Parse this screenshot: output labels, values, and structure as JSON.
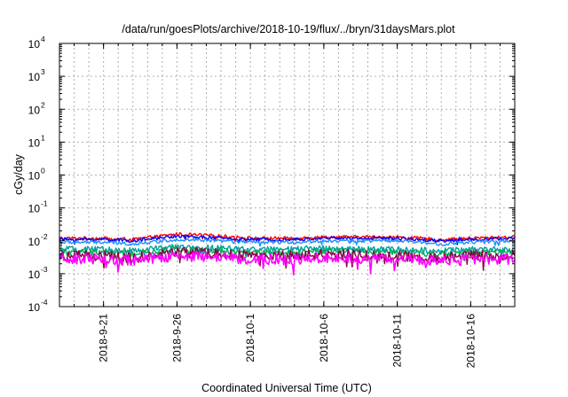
{
  "chart_data": {
    "type": "line",
    "title": "/data/run/goesPlots/archive/2018-10-19/flux/../bryn/31daysMars.plot",
    "xlabel": "Coordinated Universal Time (UTC)",
    "ylabel": "cGy/day",
    "y_scale": "log",
    "ylim_exponent": [
      -4,
      4
    ],
    "y_tick_exponents": [
      -4,
      -3,
      -2,
      -1,
      0,
      1,
      2,
      3,
      4
    ],
    "y_tick_base": "10",
    "xlim": [
      "2018-09-18",
      "2018-10-19"
    ],
    "x_ticks": [
      {
        "date": "2018-09-21",
        "label": "2018-9-21"
      },
      {
        "date": "2018-09-26",
        "label": "2018-9-26"
      },
      {
        "date": "2018-10-01",
        "label": "2018-10-1"
      },
      {
        "date": "2018-10-06",
        "label": "2018-10-6"
      },
      {
        "date": "2018-10-11",
        "label": "2018-10-11"
      },
      {
        "date": "2018-10-16",
        "label": "2018-10-16"
      }
    ],
    "grid": true,
    "x": [
      "2018-09-18",
      "2018-09-21",
      "2018-09-23",
      "2018-09-26",
      "2018-09-29",
      "2018-10-01",
      "2018-10-04",
      "2018-10-06",
      "2018-10-09",
      "2018-10-11",
      "2018-10-14",
      "2018-10-16",
      "2018-10-19"
    ],
    "series": [
      {
        "color": "#ff0000",
        "values": [
          0.012,
          0.012,
          0.011,
          0.016,
          0.014,
          0.012,
          0.012,
          0.013,
          0.013,
          0.013,
          0.011,
          0.012,
          0.013
        ]
      },
      {
        "color": "#0000ff",
        "values": [
          0.011,
          0.011,
          0.01,
          0.014,
          0.012,
          0.011,
          0.011,
          0.012,
          0.012,
          0.012,
          0.01,
          0.011,
          0.012
        ]
      },
      {
        "color": "#1e90ff",
        "values": [
          0.009,
          0.009,
          0.008,
          0.011,
          0.01,
          0.009,
          0.009,
          0.01,
          0.01,
          0.01,
          0.008,
          0.009,
          0.01
        ]
      },
      {
        "color": "#00a0a0",
        "values": [
          0.0055,
          0.0055,
          0.005,
          0.0065,
          0.006,
          0.0055,
          0.0055,
          0.006,
          0.0055,
          0.0055,
          0.005,
          0.0055,
          0.0055
        ]
      },
      {
        "color": "#00aa55",
        "values": [
          0.0045,
          0.0045,
          0.004,
          0.0055,
          0.005,
          0.0045,
          0.0045,
          0.005,
          0.0045,
          0.0045,
          0.004,
          0.0045,
          0.0045
        ]
      },
      {
        "color": "#8b0045",
        "values": [
          0.0035,
          0.0035,
          0.003,
          0.0045,
          0.004,
          0.0035,
          0.0035,
          0.004,
          0.0035,
          0.0035,
          0.003,
          0.0035,
          0.0035
        ]
      },
      {
        "color": "#ff00ff",
        "values": [
          0.0028,
          0.0028,
          0.0025,
          0.0035,
          0.0032,
          0.0028,
          0.0026,
          0.0032,
          0.0028,
          0.0028,
          0.0025,
          0.0027,
          0.0028
        ]
      }
    ]
  }
}
